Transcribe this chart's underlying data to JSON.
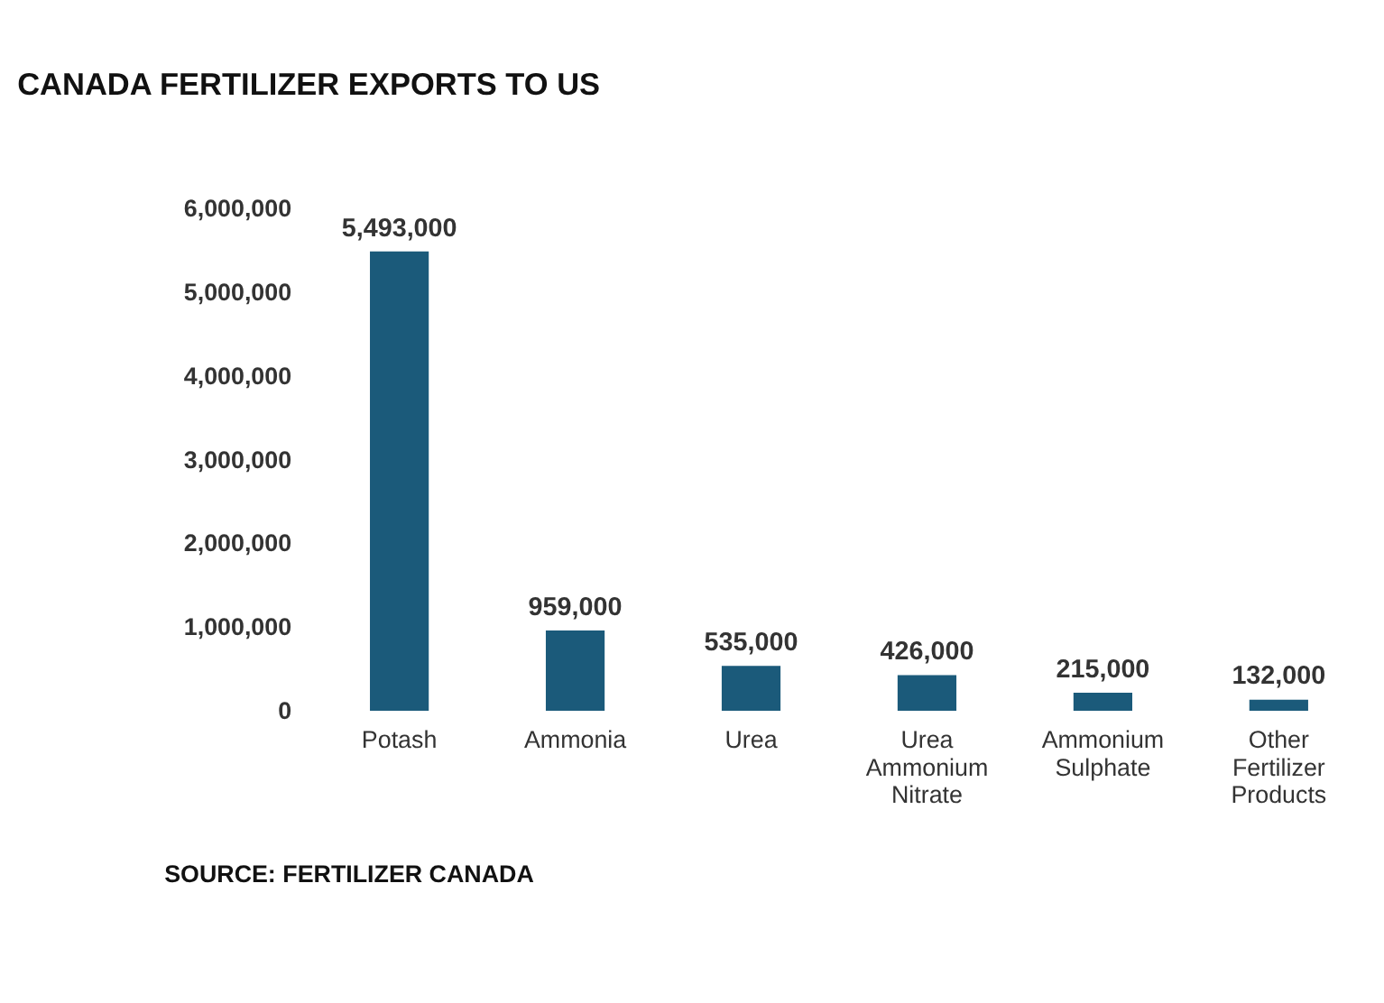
{
  "chart_data": {
    "type": "bar",
    "title": "CANADA FERTILIZER EXPORTS TO US",
    "categories": [
      "Potash",
      "Ammonia",
      "Urea",
      "Urea Ammonium Nitrate",
      "Ammonium Sulphate",
      "Other Fertilizer Products"
    ],
    "values": [
      5493000,
      959000,
      535000,
      426000,
      215000,
      132000
    ],
    "value_labels": [
      "5,493,000",
      "959,000",
      "535,000",
      "426,000",
      "215,000",
      "132,000"
    ],
    "color": "#1b5a7a",
    "ylim": [
      0,
      6000000
    ],
    "yticks": [
      {
        "value": 0,
        "label": "0"
      },
      {
        "value": 1000000,
        "label": "1,000,000"
      },
      {
        "value": 2000000,
        "label": "2,000,000"
      },
      {
        "value": 3000000,
        "label": "3,000,000"
      },
      {
        "value": 4000000,
        "label": "4,000,000"
      },
      {
        "value": 5000000,
        "label": "5,000,000"
      },
      {
        "value": 6000000,
        "label": "6,000,000"
      }
    ],
    "grid": false,
    "annotations": [
      "SOURCE: FERTILIZER CANADA"
    ]
  }
}
